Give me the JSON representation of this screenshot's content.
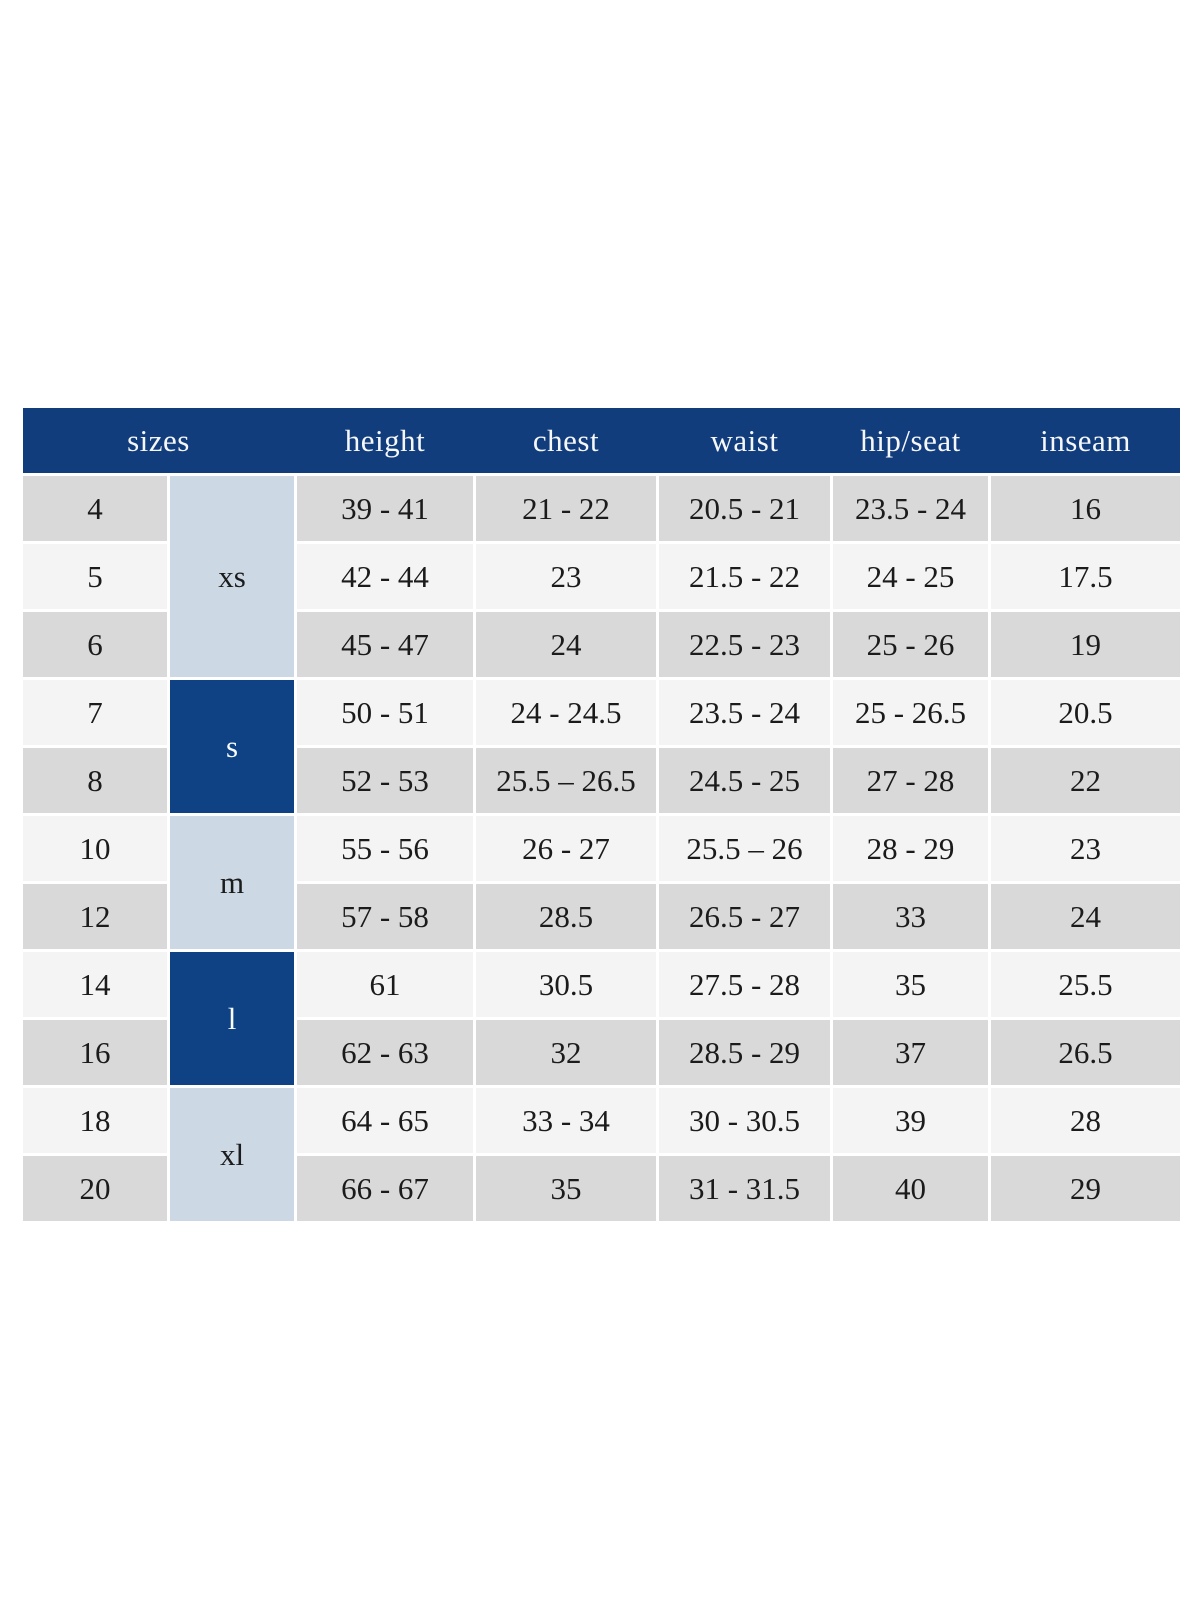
{
  "page": {
    "background": "#ffffff"
  },
  "colors": {
    "header_bg": "#123d7c",
    "header_text": "#f5f7fa",
    "group_dark_bg": "#0e4284",
    "group_dark_text": "#fafbfd",
    "group_light_bg": "#cdd8e5",
    "row_stripe_dark": "#d9d9d9",
    "row_stripe_light": "#f4f4f4",
    "cell_text": "#1b1b1b",
    "grid_gap": "#ffffff"
  },
  "chart_data": {
    "type": "table",
    "columns": [
      "sizes",
      "height",
      "chest",
      "waist",
      "hip/seat",
      "inseam"
    ],
    "size_groups": [
      {
        "label": "xs",
        "rows": [
          "4",
          "5",
          "6"
        ],
        "style": "light"
      },
      {
        "label": "s",
        "rows": [
          "7",
          "8"
        ],
        "style": "dark"
      },
      {
        "label": "m",
        "rows": [
          "10",
          "12"
        ],
        "style": "light"
      },
      {
        "label": "l",
        "rows": [
          "14",
          "16"
        ],
        "style": "dark"
      },
      {
        "label": "xl",
        "rows": [
          "18",
          "20"
        ],
        "style": "light"
      }
    ],
    "rows": [
      {
        "size": "4",
        "height": "39 - 41",
        "chest": "21 - 22",
        "waist": "20.5 - 21",
        "hip_seat": "23.5 - 24",
        "inseam": "16"
      },
      {
        "size": "5",
        "height": "42 - 44",
        "chest": "23",
        "waist": "21.5 - 22",
        "hip_seat": "24 - 25",
        "inseam": "17.5"
      },
      {
        "size": "6",
        "height": "45 - 47",
        "chest": "24",
        "waist": "22.5 - 23",
        "hip_seat": "25 - 26",
        "inseam": "19"
      },
      {
        "size": "7",
        "height": "50 - 51",
        "chest": "24 - 24.5",
        "waist": "23.5 - 24",
        "hip_seat": "25 - 26.5",
        "inseam": "20.5"
      },
      {
        "size": "8",
        "height": "52 - 53",
        "chest": "25.5 – 26.5",
        "waist": "24.5 - 25",
        "hip_seat": "27 - 28",
        "inseam": "22"
      },
      {
        "size": "10",
        "height": "55 - 56",
        "chest": "26 - 27",
        "waist": "25.5 – 26",
        "hip_seat": "28 - 29",
        "inseam": "23"
      },
      {
        "size": "12",
        "height": "57 - 58",
        "chest": "28.5",
        "waist": "26.5 - 27",
        "hip_seat": "33",
        "inseam": "24"
      },
      {
        "size": "14",
        "height": "61",
        "chest": "30.5",
        "waist": "27.5 - 28",
        "hip_seat": "35",
        "inseam": "25.5"
      },
      {
        "size": "16",
        "height": "62 - 63",
        "chest": "32",
        "waist": "28.5 - 29",
        "hip_seat": "37",
        "inseam": "26.5"
      },
      {
        "size": "18",
        "height": "64 - 65",
        "chest": "33 - 34",
        "waist": "30 - 30.5",
        "hip_seat": "39",
        "inseam": "28"
      },
      {
        "size": "20",
        "height": "66 - 67",
        "chest": "35",
        "waist": "31 - 31.5",
        "hip_seat": "40",
        "inseam": "29"
      }
    ]
  }
}
